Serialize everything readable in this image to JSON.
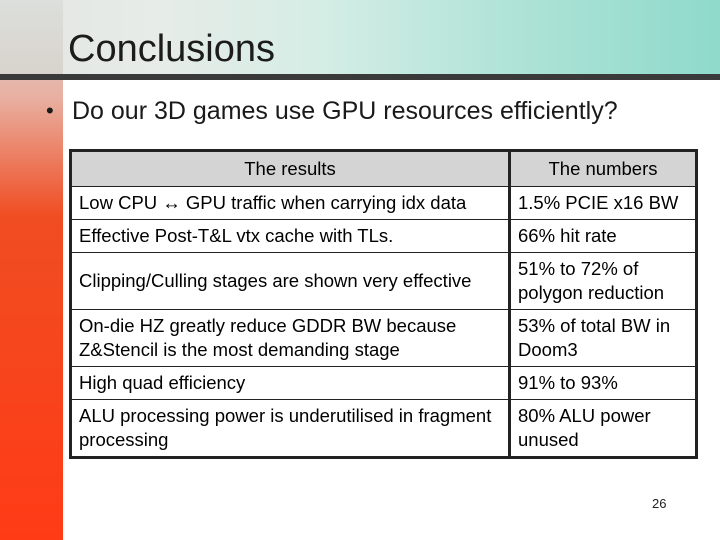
{
  "slide": {
    "title": "Conclusions",
    "bullet": "Do our 3D games use GPU resources efficiently?",
    "bullet_marker": "•",
    "page_number": "26"
  },
  "table": {
    "headers": [
      "The results",
      "The numbers"
    ],
    "rows": [
      {
        "result": "Low CPU ↔ GPU traffic when carrying idx data",
        "number": "1.5% PCIE x16 BW"
      },
      {
        "result": "Effective Post-T&L vtx cache with TLs.",
        "number": "66% hit rate"
      },
      {
        "result": "Clipping/Culling stages are shown very effective",
        "number": "51% to 72% of polygon reduction"
      },
      {
        "result": "On-die HZ greatly reduce GDDR BW because Z&Stencil is the most demanding stage",
        "number": "53% of total BW in Doom3"
      },
      {
        "result": "High quad efficiency",
        "number": "91% to 93%"
      },
      {
        "result": "ALU processing power is underutilised in fragment processing",
        "number": "80% ALU power unused"
      }
    ]
  },
  "colors": {
    "left_bar": "#ff3b16",
    "title_rule": "#3a3a3a",
    "header_fill": "#d4d4d4"
  }
}
